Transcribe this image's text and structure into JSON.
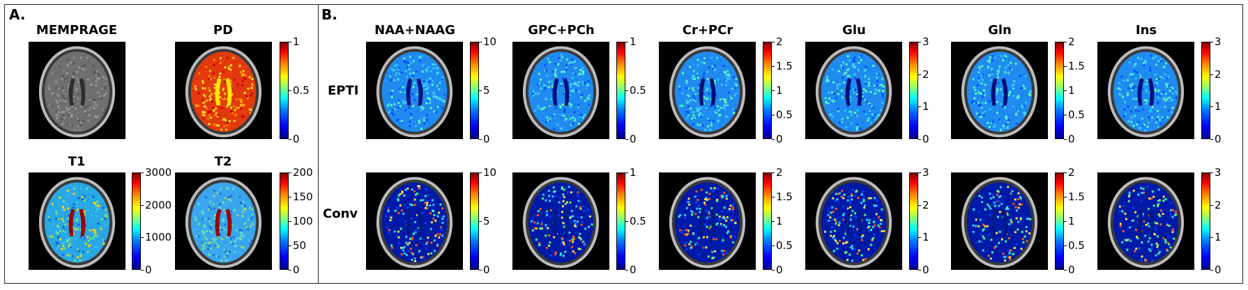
{
  "panelA": {
    "label": "A.",
    "maps": [
      {
        "id": "memprage",
        "title": "MEMPRAGE",
        "style": "gray",
        "colorbar": null
      },
      {
        "id": "pd",
        "title": "PD",
        "style": "pd",
        "colorbar": [
          "1",
          "0.5",
          "0"
        ]
      },
      {
        "id": "t1",
        "title": "T1",
        "style": "tmap",
        "colorbar": [
          "3000",
          "2000",
          "1000",
          "0"
        ]
      },
      {
        "id": "t2",
        "title": "T2",
        "style": "tmap",
        "colorbar": [
          "200",
          "150",
          "100",
          "50",
          "0"
        ]
      }
    ]
  },
  "panelB": {
    "label": "B.",
    "row_labels": [
      "EPTI",
      "Conv"
    ],
    "metabolites": [
      {
        "title": "NAA+NAAG",
        "colorbar": [
          "10",
          "5",
          "0"
        ]
      },
      {
        "title": "GPC+PCh",
        "colorbar": [
          "1",
          "0.5",
          "0"
        ]
      },
      {
        "title": "Cr+PCr",
        "colorbar": [
          "2",
          "1.5",
          "1",
          "0.5",
          "0"
        ]
      },
      {
        "title": "Glu",
        "colorbar": [
          "3",
          "2",
          "1",
          "0"
        ]
      },
      {
        "title": "Gln",
        "colorbar": [
          "2",
          "1.5",
          "1",
          "0.5",
          "0"
        ]
      },
      {
        "title": "Ins",
        "colorbar": [
          "3",
          "2",
          "1",
          "0"
        ]
      }
    ]
  }
}
